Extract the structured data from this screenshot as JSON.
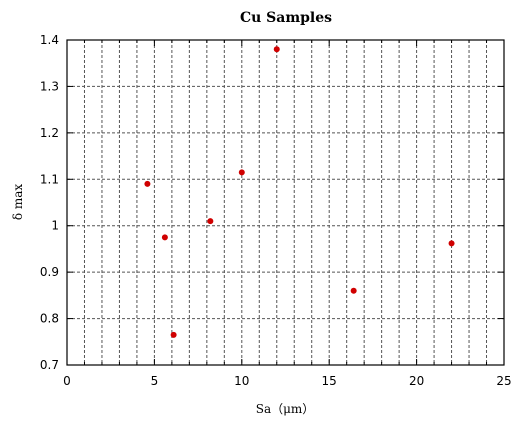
{
  "chart_data": {
    "type": "scatter",
    "title": "Cu Samples",
    "xlabel": "Sa（μm）",
    "ylabel": "δ max",
    "xlim": [
      0,
      25
    ],
    "ylim": [
      0.7,
      1.4
    ],
    "x_ticks": [
      "0",
      "5",
      "10",
      "15",
      "20",
      "25"
    ],
    "y_ticks": [
      "0.7",
      "0.8",
      "0.9",
      "1",
      "1.1",
      "1.2",
      "1.3",
      "1.4"
    ],
    "x_grid_step": 1,
    "y_grid_step": 0.1,
    "grid": true,
    "legend": "none",
    "series": [
      {
        "color": "#d00000",
        "points": [
          {
            "x": 4.6,
            "y": 1.09
          },
          {
            "x": 5.6,
            "y": 0.975
          },
          {
            "x": 6.1,
            "y": 0.765
          },
          {
            "x": 8.2,
            "y": 1.01
          },
          {
            "x": 10.0,
            "y": 1.115
          },
          {
            "x": 12.0,
            "y": 1.38
          },
          {
            "x": 16.4,
            "y": 0.86
          },
          {
            "x": 22.0,
            "y": 0.962
          }
        ]
      }
    ]
  }
}
